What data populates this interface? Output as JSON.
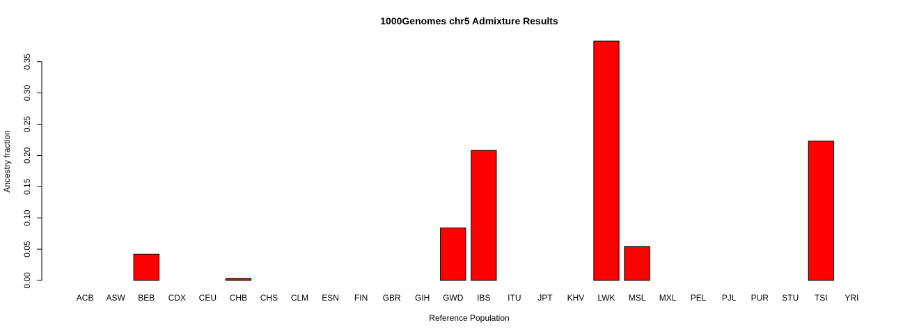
{
  "chart_data": {
    "type": "bar",
    "title": "1000Genomes chr5 Admixture Results",
    "xlabel": "Reference Population",
    "ylabel": "Ancestry fraction",
    "ylim": [
      0,
      0.38
    ],
    "yticks": [
      "0.00",
      "0.05",
      "0.10",
      "0.15",
      "0.20",
      "0.25",
      "0.30",
      "0.35"
    ],
    "bar_color": "#ff0000",
    "bar_border": "#000000",
    "categories": [
      "ACB",
      "ASW",
      "BEB",
      "CDX",
      "CEU",
      "CHB",
      "CHS",
      "CLM",
      "ESN",
      "FIN",
      "GBR",
      "GIH",
      "GWD",
      "IBS",
      "ITU",
      "JPT",
      "KHV",
      "LWK",
      "MSL",
      "MXL",
      "PEL",
      "PJL",
      "PUR",
      "STU",
      "TSI",
      "YRI"
    ],
    "values": [
      0,
      0,
      0.042,
      0,
      0,
      0.003,
      0,
      0,
      0,
      0,
      0,
      0,
      0.084,
      0.208,
      0,
      0,
      0,
      0.383,
      0.054,
      0,
      0,
      0,
      0,
      0,
      0.223,
      0
    ]
  }
}
